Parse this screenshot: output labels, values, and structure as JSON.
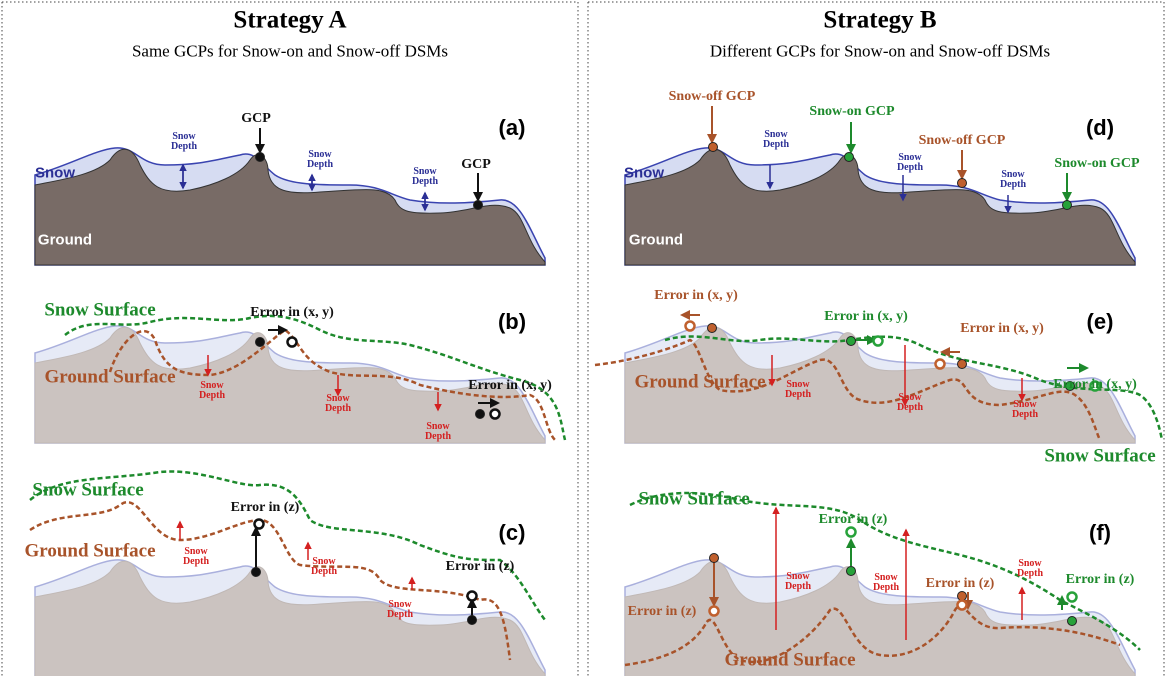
{
  "strategies": [
    {
      "title": "Strategy A",
      "subtitle": "Same GCPs for Snow-on and Snow-off DSMs",
      "panels": [
        {
          "label": "(a)",
          "texts": [
            "Snow",
            "Ground",
            "GCP",
            "GCP",
            "Snow Depth",
            "Snow Depth",
            "Snow Depth"
          ]
        },
        {
          "label": "(b)",
          "texts": [
            "Snow Surface",
            "Ground Surface",
            "Error in (x, y)",
            "Error in (x, y)",
            "Snow Depth",
            "Snow Depth",
            "Snow Depth"
          ]
        },
        {
          "label": "(c)",
          "texts": [
            "Snow Surface",
            "Ground Surface",
            "Error in (z)",
            "Error in (z)",
            "Snow Depth",
            "Snow Depth",
            "Snow Depth"
          ]
        }
      ]
    },
    {
      "title": "Strategy B",
      "subtitle": "Different GCPs for Snow-on and Snow-off DSMs",
      "panels": [
        {
          "label": "(d)",
          "texts": [
            "Snow",
            "Ground",
            "Snow-off GCP",
            "Snow-on GCP",
            "Snow-off GCP",
            "Snow-on GCP",
            "Snow Depth",
            "Snow Depth",
            "Snow Depth"
          ]
        },
        {
          "label": "(e)",
          "texts": [
            "Error in (x, y)",
            "Error in (x, y)",
            "Error in (x, y)",
            "Error in (x, y)",
            "Ground Surface",
            "Snow Surface",
            "Snow Depth",
            "Snow Depth",
            "Snow Depth"
          ]
        },
        {
          "label": "(f)",
          "texts": [
            "Snow Surface",
            "Error in (z)",
            "Error in (z)",
            "Error in (z)",
            "Error in (z)",
            "Snow Depth",
            "Snow Depth",
            "Snow Depth",
            "Ground Surface"
          ]
        }
      ]
    }
  ]
}
